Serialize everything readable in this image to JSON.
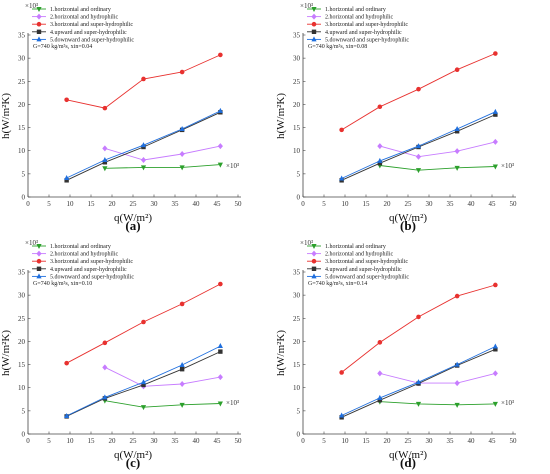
{
  "figure": {
    "x_exponent_label": "×10³",
    "y_exponent_label": "×10³"
  },
  "legend_labels": [
    "1.horizontal and ordinary",
    "2.horizontal and hydrophilic",
    "3.horizontal and super-hydrophilic",
    "4.upward and super-hydrophilic",
    "5.downward and super-hydrophilic"
  ],
  "series_colors": [
    "#2ca02c",
    "#c77cff",
    "#e8312f",
    "#333333",
    "#1f6fde"
  ],
  "series_markers": [
    "triangle-down",
    "diamond",
    "circle",
    "square",
    "triangle-up"
  ],
  "chart_data": [
    {
      "type": "line",
      "panel": "(a)",
      "condition": "G=740 kg/m²s, xin=0.04",
      "xlabel": "q(W/m²)",
      "ylabel": "h(W/m²K)",
      "xlim": [
        0,
        50
      ],
      "ylim": [
        0,
        35
      ],
      "x_ticks": [
        "0",
        "5",
        "10",
        "15",
        "20",
        "25",
        "30",
        "35",
        "40",
        "45",
        "50"
      ],
      "y_ticks": [
        "0",
        "5",
        "10",
        "15",
        "20",
        "25",
        "30",
        "35"
      ],
      "series": [
        {
          "name": "1.horizontal and ordinary",
          "x": [
            18.3,
            27.5,
            36.7,
            45.8
          ],
          "y": [
            6.2,
            6.4,
            6.4,
            7.0
          ]
        },
        {
          "name": "2.horizontal and hydrophilic",
          "x": [
            18.3,
            27.5,
            36.7,
            45.8
          ],
          "y": [
            10.5,
            8.0,
            9.3,
            11.0
          ]
        },
        {
          "name": "3.horizontal and super-hydrophilic",
          "x": [
            9.2,
            18.3,
            27.5,
            36.7,
            45.8
          ],
          "y": [
            21.0,
            19.2,
            25.5,
            27.0,
            30.7
          ]
        },
        {
          "name": "4.upward and super-hydrophilic",
          "x": [
            9.2,
            18.3,
            27.5,
            36.7,
            45.8
          ],
          "y": [
            3.6,
            7.5,
            10.8,
            14.5,
            18.3
          ]
        },
        {
          "name": "5.downward and super-hydrophilic",
          "x": [
            9.2,
            18.3,
            27.5,
            36.7,
            45.8
          ],
          "y": [
            4.1,
            8.0,
            11.2,
            14.7,
            18.6
          ]
        }
      ]
    },
    {
      "type": "line",
      "panel": "(b)",
      "condition": "G=740 kg/m²s, xin=0.08",
      "xlabel": "q(W/m²)",
      "ylabel": "h(W/m²K)",
      "xlim": [
        0,
        50
      ],
      "ylim": [
        0,
        35
      ],
      "x_ticks": [
        "0",
        "5",
        "10",
        "15",
        "20",
        "25",
        "30",
        "35",
        "40",
        "45",
        "50"
      ],
      "y_ticks": [
        "0",
        "5",
        "10",
        "15",
        "20",
        "25",
        "30",
        "35"
      ],
      "series": [
        {
          "name": "1.horizontal and ordinary",
          "x": [
            18.3,
            27.5,
            36.7,
            45.8
          ],
          "y": [
            6.8,
            5.8,
            6.3,
            6.6
          ]
        },
        {
          "name": "2.horizontal and hydrophilic",
          "x": [
            18.3,
            27.5,
            36.7,
            45.8
          ],
          "y": [
            11.0,
            8.7,
            9.9,
            11.9
          ]
        },
        {
          "name": "3.horizontal and super-hydrophilic",
          "x": [
            9.2,
            18.3,
            27.5,
            36.7,
            45.8
          ],
          "y": [
            14.5,
            19.5,
            23.3,
            27.5,
            31.0
          ]
        },
        {
          "name": "4.upward and super-hydrophilic",
          "x": [
            9.2,
            18.3,
            27.5,
            36.7,
            45.8
          ],
          "y": [
            3.6,
            7.3,
            10.8,
            14.2,
            17.8
          ]
        },
        {
          "name": "5.downward and super-hydrophilic",
          "x": [
            9.2,
            18.3,
            27.5,
            36.7,
            45.8
          ],
          "y": [
            4.0,
            7.8,
            11.0,
            14.7,
            18.4
          ]
        }
      ]
    },
    {
      "type": "line",
      "panel": "(c)",
      "condition": "G=740 kg/m²s, xin=0.10",
      "xlabel": "q(W/m²)",
      "ylabel": "h(W/m²K)",
      "xlim": [
        0,
        50
      ],
      "ylim": [
        0,
        35
      ],
      "x_ticks": [
        "0",
        "5",
        "10",
        "15",
        "20",
        "25",
        "30",
        "35",
        "40",
        "45",
        "50"
      ],
      "y_ticks": [
        "0",
        "5",
        "10",
        "15",
        "20",
        "25",
        "30",
        "35"
      ],
      "series": [
        {
          "name": "1.horizontal and ordinary",
          "x": [
            18.3,
            27.5,
            36.7,
            45.8
          ],
          "y": [
            7.2,
            5.8,
            6.3,
            6.6
          ]
        },
        {
          "name": "2.horizontal and hydrophilic",
          "x": [
            18.3,
            27.5,
            36.7,
            45.8
          ],
          "y": [
            14.4,
            10.3,
            10.8,
            12.3
          ]
        },
        {
          "name": "3.horizontal and super-hydrophilic",
          "x": [
            9.2,
            18.3,
            27.5,
            36.7,
            45.8
          ],
          "y": [
            15.3,
            19.7,
            24.2,
            28.1,
            32.4
          ]
        },
        {
          "name": "4.upward and super-hydrophilic",
          "x": [
            9.2,
            18.3,
            27.5,
            36.7,
            45.8
          ],
          "y": [
            3.8,
            7.7,
            10.6,
            14.0,
            17.8
          ]
        },
        {
          "name": "5.downward and super-hydrophilic",
          "x": [
            9.2,
            18.3,
            27.5,
            36.7,
            45.8
          ],
          "y": [
            3.9,
            7.9,
            11.2,
            14.9,
            19.0
          ]
        }
      ]
    },
    {
      "type": "line",
      "panel": "(d)",
      "condition": "G=740 kg/m²s, xin=0.14",
      "xlabel": "q(W/m²)",
      "ylabel": "h(W/m²K)",
      "xlim": [
        0,
        50
      ],
      "ylim": [
        0,
        35
      ],
      "x_ticks": [
        "0",
        "5",
        "10",
        "15",
        "20",
        "25",
        "30",
        "35",
        "40",
        "45",
        "50"
      ],
      "y_ticks": [
        "0",
        "5",
        "10",
        "15",
        "20",
        "25",
        "30",
        "35"
      ],
      "series": [
        {
          "name": "1.horizontal and ordinary",
          "x": [
            18.3,
            27.5,
            36.7,
            45.8
          ],
          "y": [
            7.0,
            6.5,
            6.3,
            6.5
          ]
        },
        {
          "name": "2.horizontal and hydrophilic",
          "x": [
            18.3,
            27.5,
            36.7,
            45.8
          ],
          "y": [
            13.1,
            11.0,
            11.0,
            13.1
          ]
        },
        {
          "name": "3.horizontal and super-hydrophilic",
          "x": [
            9.2,
            18.3,
            27.5,
            36.7,
            45.8
          ],
          "y": [
            13.3,
            19.8,
            25.3,
            29.8,
            32.2
          ]
        },
        {
          "name": "4.upward and super-hydrophilic",
          "x": [
            9.2,
            18.3,
            27.5,
            36.7,
            45.8
          ],
          "y": [
            3.6,
            7.3,
            10.9,
            14.8,
            18.3
          ]
        },
        {
          "name": "5.downward and super-hydrophilic",
          "x": [
            9.2,
            18.3,
            27.5,
            36.7,
            45.8
          ],
          "y": [
            4.0,
            7.8,
            11.2,
            15.0,
            18.9
          ]
        }
      ]
    }
  ]
}
